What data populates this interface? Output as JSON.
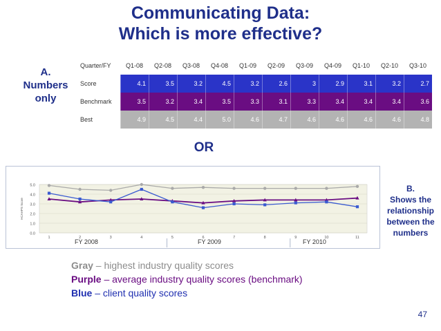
{
  "title": {
    "line1": "Communicating Data:",
    "line2": "Which is more effective?"
  },
  "section_a": {
    "label": "A.\nNumbers\nonly"
  },
  "table": {
    "header_label": "Quarter/FY",
    "columns": [
      "Q1-08",
      "Q2-08",
      "Q3-08",
      "Q4-08",
      "Q1-09",
      "Q2-09",
      "Q3-09",
      "Q4-09",
      "Q1-10",
      "Q2-10",
      "Q3-10"
    ],
    "rows": [
      {
        "label": "Score",
        "values": [
          "4.1",
          "3.5",
          "3.2",
          "4.5",
          "3.2",
          "2.6",
          "3",
          "2.9",
          "3.1",
          "3.2",
          "2.7"
        ]
      },
      {
        "label": "Benchmark",
        "values": [
          "3.5",
          "3.2",
          "3.4",
          "3.5",
          "3.3",
          "3.1",
          "3.3",
          "3.4",
          "3.4",
          "3.4",
          "3.6"
        ]
      },
      {
        "label": "Best",
        "values": [
          "4.9",
          "4.5",
          "4.4",
          "5.0",
          "4.6",
          "4.7",
          "4.6",
          "4.6",
          "4.6",
          "4.6",
          "4.8"
        ]
      }
    ]
  },
  "or_text": "OR",
  "section_b": {
    "label": "B.\nShows the\nrelationship\nbetween the\nnumbers"
  },
  "chart_data": {
    "type": "line",
    "x": [
      1,
      2,
      3,
      4,
      5,
      6,
      7,
      8,
      9,
      10,
      11
    ],
    "ylabel": "HCAHPS Score",
    "ylim": [
      0,
      5
    ],
    "yticks": [
      "0.0",
      "1.0",
      "2.0",
      "3.0",
      "4.0",
      "5.0"
    ],
    "grid": true,
    "series": [
      {
        "name": "Best",
        "color": "#a9a9a9",
        "values": [
          4.9,
          4.5,
          4.4,
          5.0,
          4.6,
          4.7,
          4.6,
          4.6,
          4.6,
          4.6,
          4.8
        ]
      },
      {
        "name": "Benchmark",
        "color": "#6a0d82",
        "values": [
          3.5,
          3.2,
          3.4,
          3.5,
          3.3,
          3.1,
          3.3,
          3.4,
          3.4,
          3.4,
          3.6
        ]
      },
      {
        "name": "Score",
        "color": "#3a5ad0",
        "values": [
          4.1,
          3.5,
          3.2,
          4.5,
          3.2,
          2.6,
          3.0,
          2.9,
          3.1,
          3.2,
          2.7
        ]
      }
    ],
    "fiscal_years": [
      "FY 2008",
      "FY 2009",
      "FY 2010"
    ]
  },
  "legend": [
    {
      "key": "Gray",
      "rest": " – highest industry quality scores",
      "color": "#8c8c8c"
    },
    {
      "key": "Purple",
      "rest": " – average industry quality scores (benchmark)",
      "color": "#6a0d82"
    },
    {
      "key": "Blue",
      "rest": " – client quality scores",
      "color": "#1f2fb0"
    }
  ],
  "page_number": "47"
}
